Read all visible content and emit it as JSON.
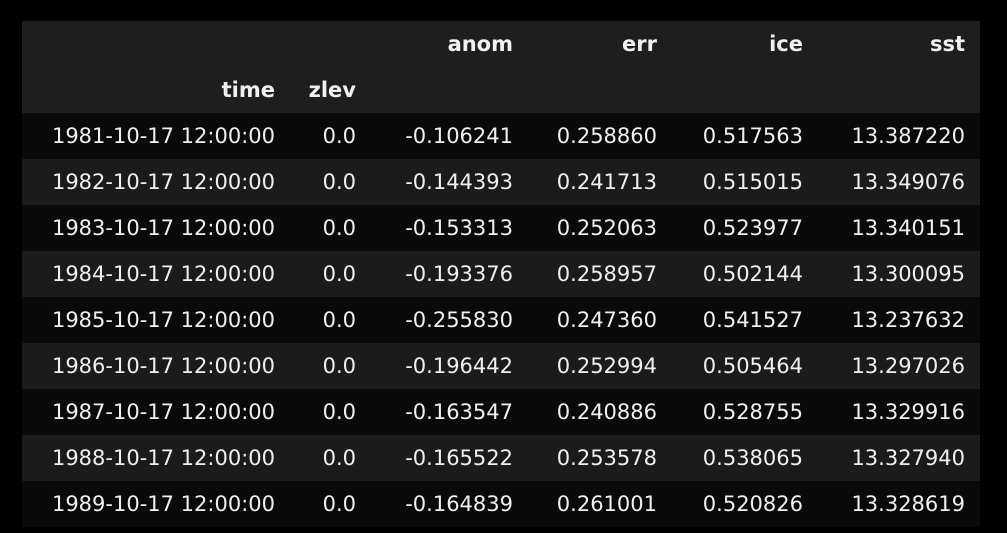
{
  "table": {
    "columns": [
      "anom",
      "err",
      "ice",
      "sst"
    ],
    "index_names": [
      "time",
      "zlev"
    ],
    "rows": [
      {
        "time": "1981-10-17 12:00:00",
        "zlev": "0.0",
        "anom": "-0.106241",
        "err": "0.258860",
        "ice": "0.517563",
        "sst": "13.387220"
      },
      {
        "time": "1982-10-17 12:00:00",
        "zlev": "0.0",
        "anom": "-0.144393",
        "err": "0.241713",
        "ice": "0.515015",
        "sst": "13.349076"
      },
      {
        "time": "1983-10-17 12:00:00",
        "zlev": "0.0",
        "anom": "-0.153313",
        "err": "0.252063",
        "ice": "0.523977",
        "sst": "13.340151"
      },
      {
        "time": "1984-10-17 12:00:00",
        "zlev": "0.0",
        "anom": "-0.193376",
        "err": "0.258957",
        "ice": "0.502144",
        "sst": "13.300095"
      },
      {
        "time": "1985-10-17 12:00:00",
        "zlev": "0.0",
        "anom": "-0.255830",
        "err": "0.247360",
        "ice": "0.541527",
        "sst": "13.237632"
      },
      {
        "time": "1986-10-17 12:00:00",
        "zlev": "0.0",
        "anom": "-0.196442",
        "err": "0.252994",
        "ice": "0.505464",
        "sst": "13.297026"
      },
      {
        "time": "1987-10-17 12:00:00",
        "zlev": "0.0",
        "anom": "-0.163547",
        "err": "0.240886",
        "ice": "0.528755",
        "sst": "13.329916"
      },
      {
        "time": "1988-10-17 12:00:00",
        "zlev": "0.0",
        "anom": "-0.165522",
        "err": "0.253578",
        "ice": "0.538065",
        "sst": "13.327940"
      },
      {
        "time": "1989-10-17 12:00:00",
        "zlev": "0.0",
        "anom": "-0.164839",
        "err": "0.261001",
        "ice": "0.520826",
        "sst": "13.328619"
      }
    ]
  },
  "colors": {
    "background": "#000000",
    "header_bg": "#1e1e1e",
    "row_odd_bg": "#0a0a0a",
    "row_even_bg": "#1b1b1b",
    "text": "#f0f0f0"
  }
}
